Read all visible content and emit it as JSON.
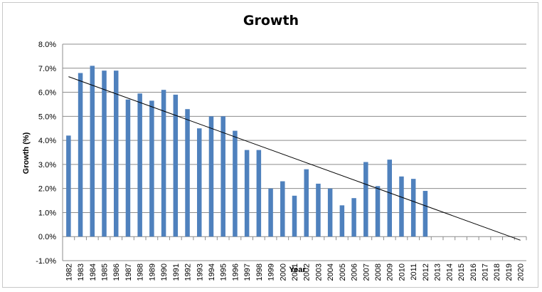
{
  "chart_data": {
    "type": "bar",
    "title": "Growth",
    "xlabel": "Year",
    "ylabel": "Growth (%)",
    "ylim": [
      -1,
      8
    ],
    "ytick_step": 1,
    "ytick_labels": [
      "-1.0%",
      "0.0%",
      "1.0%",
      "2.0%",
      "3.0%",
      "4.0%",
      "5.0%",
      "6.0%",
      "7.0%",
      "8.0%"
    ],
    "grid": true,
    "bar_color": "#4f81bd",
    "trendline_color": "#000000",
    "categories": [
      "1982",
      "1983",
      "1984",
      "1985",
      "1986",
      "1987",
      "1988",
      "1989",
      "1990",
      "1991",
      "1992",
      "1993",
      "1994",
      "1995",
      "1996",
      "1997",
      "1998",
      "1999",
      "2000",
      "2001",
      "2002",
      "2003",
      "2004",
      "2005",
      "2006",
      "2007",
      "2008",
      "2009",
      "2010",
      "2011",
      "2012",
      "2013",
      "2014",
      "2015",
      "2016",
      "2017",
      "2018",
      "2019",
      "2020"
    ],
    "values": [
      4.2,
      6.8,
      7.1,
      6.9,
      6.9,
      5.7,
      5.95,
      5.65,
      6.1,
      5.9,
      5.3,
      4.5,
      5.0,
      5.0,
      4.4,
      3.6,
      3.6,
      2.0,
      2.3,
      1.7,
      2.8,
      2.2,
      2.0,
      1.3,
      1.6,
      3.1,
      2.1,
      3.2,
      2.5,
      2.4,
      1.9,
      null,
      null,
      null,
      null,
      null,
      null,
      null,
      null
    ],
    "trendline": {
      "x_start": "1982",
      "y_start": 6.65,
      "x_end": "2020",
      "y_end": -0.15
    }
  }
}
